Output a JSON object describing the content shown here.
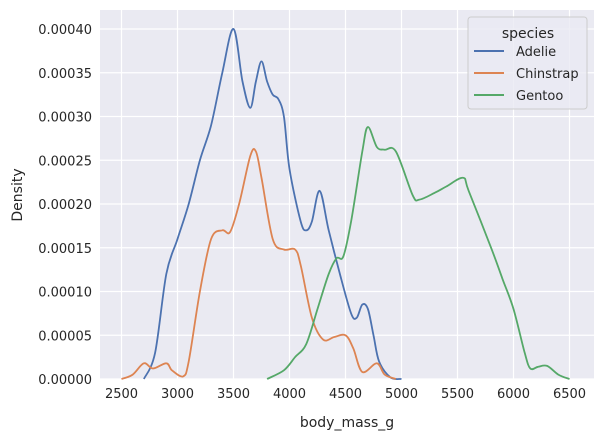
{
  "chart_data": {
    "type": "line",
    "subtype": "kde",
    "title": "",
    "xlabel": "body_mass_g",
    "ylabel": "Density",
    "xlim": [
      2310,
      6720
    ],
    "ylim": [
      0,
      0.00042
    ],
    "x_ticks": [
      2500,
      3000,
      3500,
      4000,
      4500,
      5000,
      5500,
      6000,
      6500
    ],
    "x_tick_labels": [
      "2500",
      "3000",
      "3500",
      "4000",
      "4500",
      "5000",
      "5500",
      "6000",
      "6500"
    ],
    "y_ticks": [
      0,
      5e-05,
      0.0001,
      0.00015,
      0.0002,
      0.00025,
      0.0003,
      0.00035,
      0.0004
    ],
    "y_tick_labels": [
      "0.00000",
      "0.00005",
      "0.00010",
      "0.00015",
      "0.00020",
      "0.00025",
      "0.00030",
      "0.00035",
      "0.00040"
    ],
    "grid": true,
    "background": "#eaeaf2",
    "legend": {
      "title": "species",
      "position": "upper right",
      "entries": [
        "Adelie",
        "Chinstrap",
        "Gentoo"
      ]
    },
    "series": [
      {
        "name": "Adelie",
        "color": "#4c72b0",
        "x": [
          2700,
          2800,
          2900,
          3000,
          3100,
          3200,
          3300,
          3400,
          3500,
          3580,
          3650,
          3700,
          3750,
          3800,
          3850,
          3900,
          3950,
          4000,
          4100,
          4150,
          4200,
          4270,
          4350,
          4450,
          4550,
          4600,
          4650,
          4700,
          4750,
          4800,
          4900,
          5000
        ],
        "y": [
          0,
          3e-05,
          0.00012,
          0.00016,
          0.0002,
          0.00025,
          0.00029,
          0.00035,
          0.0004,
          0.00034,
          0.00031,
          0.00034,
          0.000363,
          0.00034,
          0.000325,
          0.00032,
          0.0003,
          0.00024,
          0.00018,
          0.00017,
          0.00018,
          0.000215,
          0.00017,
          0.00012,
          7.5e-05,
          7e-05,
          8.5e-05,
          8e-05,
          5e-05,
          2e-05,
          2e-06,
          0
        ]
      },
      {
        "name": "Chinstrap",
        "color": "#dd8452",
        "x": [
          2500,
          2600,
          2700,
          2780,
          2900,
          2950,
          3050,
          3100,
          3200,
          3300,
          3400,
          3470,
          3550,
          3650,
          3700,
          3750,
          3850,
          3950,
          4050,
          4100,
          4200,
          4300,
          4400,
          4500,
          4570,
          4650,
          4780,
          4850,
          4950
        ],
        "y": [
          0,
          5e-06,
          1.8e-05,
          1.2e-05,
          1.8e-05,
          1e-05,
          3e-06,
          2e-05,
          0.0001,
          0.00016,
          0.00017,
          0.000168,
          0.0002,
          0.000255,
          0.00026,
          0.00023,
          0.00016,
          0.000148,
          0.000148,
          0.00013,
          7e-05,
          4.5e-05,
          4.8e-05,
          5e-05,
          3.5e-05,
          8e-06,
          1.8e-05,
          5e-06,
          0
        ]
      },
      {
        "name": "Gentoo",
        "color": "#55a868",
        "x": [
          3800,
          3950,
          4050,
          4150,
          4250,
          4350,
          4420,
          4480,
          4550,
          4650,
          4700,
          4780,
          4850,
          4950,
          5100,
          5160,
          5300,
          5400,
          5550,
          5600,
          5800,
          5900,
          6000,
          6100,
          6150,
          6220,
          6300,
          6400,
          6500
        ],
        "y": [
          0,
          1e-05,
          2.5e-05,
          4e-05,
          8e-05,
          0.00012,
          0.000138,
          0.00014,
          0.00018,
          0.00026,
          0.000288,
          0.000265,
          0.000262,
          0.00026,
          0.00021,
          0.000205,
          0.000213,
          0.00022,
          0.00023,
          0.000215,
          0.00015,
          0.000115,
          8e-05,
          3e-05,
          1.2e-05,
          1.4e-05,
          1.5e-05,
          5e-06,
          0
        ]
      }
    ]
  }
}
